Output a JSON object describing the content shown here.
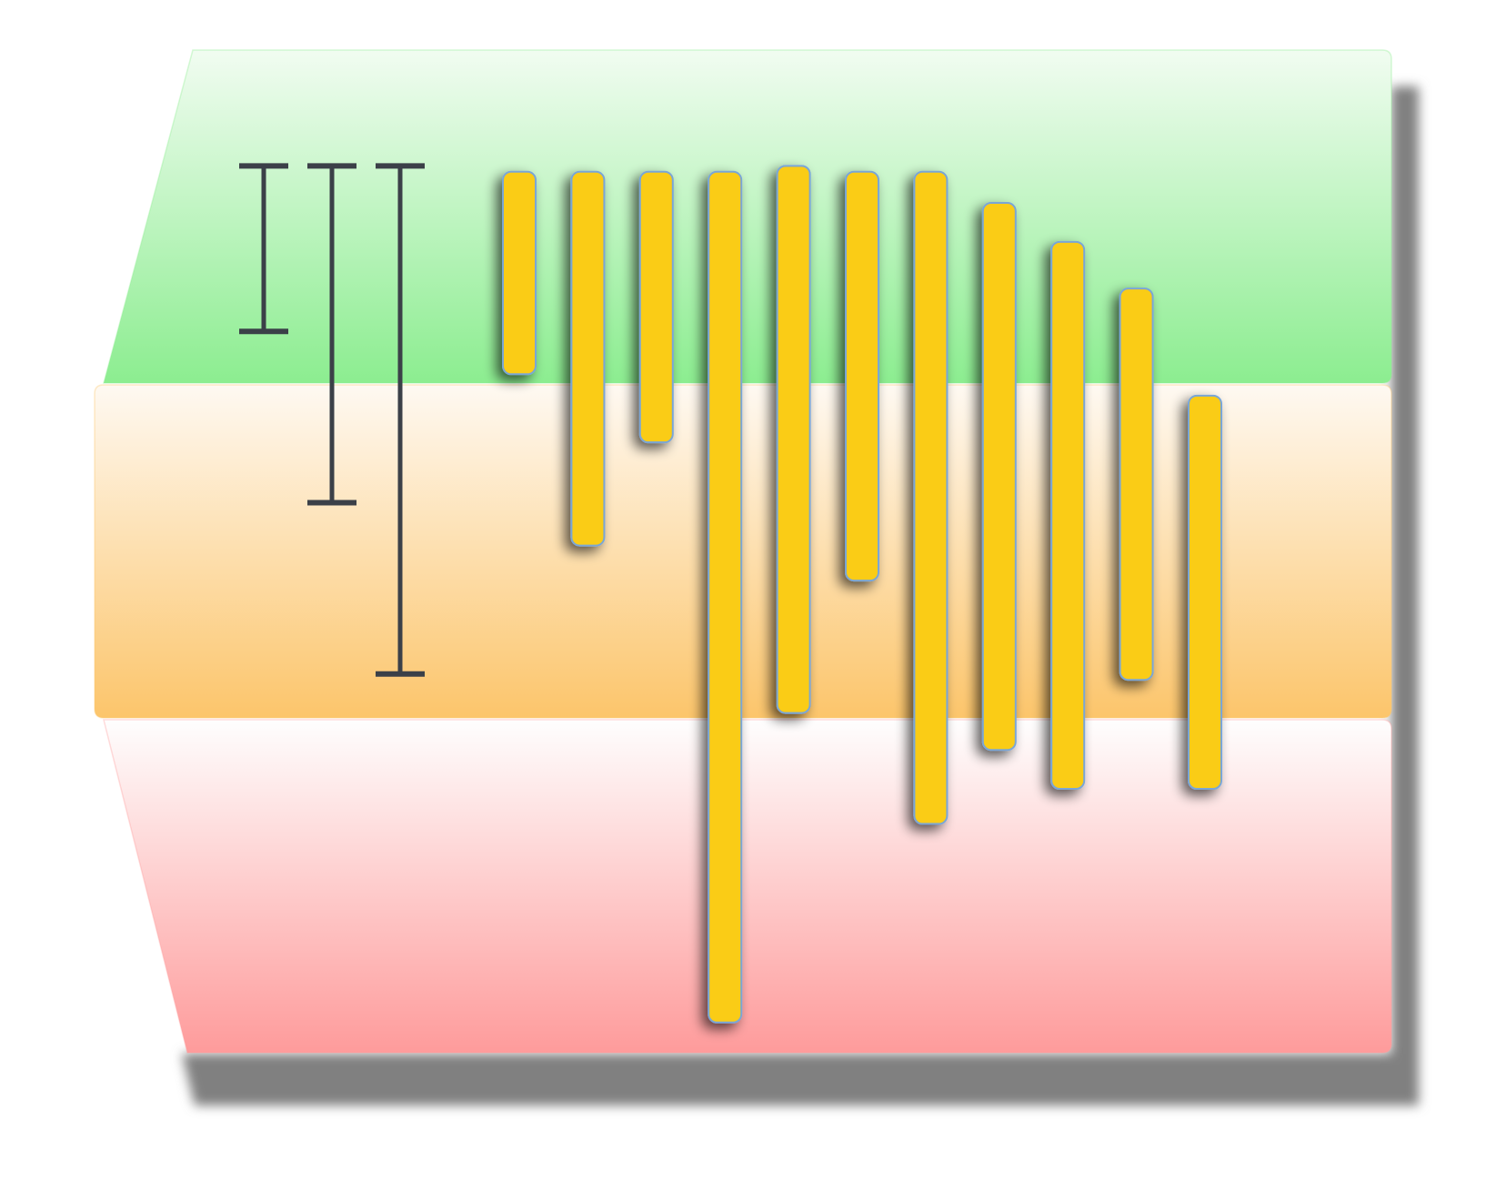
{
  "chart_data": {
    "type": "bar",
    "subtype": "range-bar",
    "orientation": "vertical",
    "axis_direction": "top-to-bottom",
    "ylim": [
      0,
      5.16
    ],
    "bands": [
      {
        "name": "",
        "range": [
          0,
          1.72
        ],
        "color_top": "#f1fcf1",
        "color_bottom": "#8ced90"
      },
      {
        "name": "",
        "range": [
          1.72,
          3.44
        ],
        "color_top": "#fef9f2",
        "color_bottom": "#fcc56b"
      },
      {
        "name": "",
        "range": [
          3.44,
          5.16
        ],
        "color_top": "#fefefe",
        "color_bottom": "#fe9b9b"
      }
    ],
    "reference_bars": [
      {
        "name": "",
        "start": 0.6,
        "end": 1.45
      },
      {
        "name": "",
        "start": 0.6,
        "end": 2.33
      },
      {
        "name": "",
        "start": 0.6,
        "end": 3.21
      }
    ],
    "bars": [
      {
        "start": 0.63,
        "end": 1.67
      },
      {
        "start": 0.63,
        "end": 2.55
      },
      {
        "start": 0.63,
        "end": 2.02
      },
      {
        "start": 0.63,
        "end": 5.0
      },
      {
        "start": 0.6,
        "end": 3.41
      },
      {
        "start": 0.63,
        "end": 2.73
      },
      {
        "start": 0.63,
        "end": 3.98
      },
      {
        "start": 0.79,
        "end": 3.6
      },
      {
        "start": 0.99,
        "end": 3.8
      },
      {
        "start": 1.23,
        "end": 3.24
      },
      {
        "start": 1.78,
        "end": 3.8
      }
    ],
    "colors": {
      "bar_fill": "#facc15",
      "bar_stroke": "#7aa6d6",
      "reference_stroke": "#3b4048",
      "shadow": "#808080"
    },
    "grid": false,
    "legend": "none",
    "title": "",
    "xlabel": "",
    "ylabel": ""
  }
}
